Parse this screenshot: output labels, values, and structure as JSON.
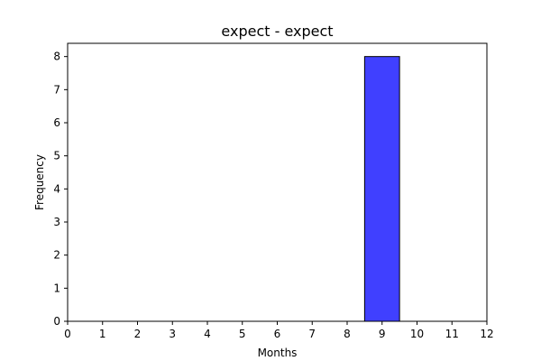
{
  "chart_data": {
    "type": "bar",
    "title": "expect - expect",
    "xlabel": "Months",
    "ylabel": "Frequency",
    "xlim": [
      0,
      12
    ],
    "ylim": [
      0,
      8.4
    ],
    "x_ticks": [
      0,
      1,
      2,
      3,
      4,
      5,
      6,
      7,
      8,
      9,
      10,
      11,
      12
    ],
    "y_ticks": [
      0,
      1,
      2,
      3,
      4,
      5,
      6,
      7,
      8
    ],
    "bars": [
      {
        "x_start": 8.5,
        "x_end": 9.5,
        "value": 8
      }
    ],
    "bar_color": "#4040ff",
    "bar_edge_color": "#000000",
    "grid": false,
    "legend": null
  }
}
